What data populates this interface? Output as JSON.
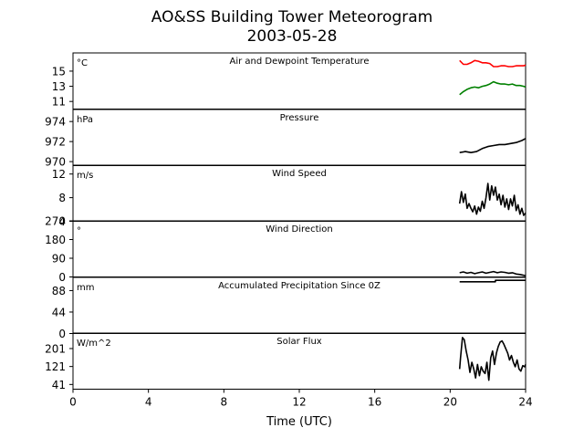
{
  "chart_data": {
    "type": "line",
    "title": "AO&SS Building Tower Meteorogram",
    "subtitle": "2003-05-28",
    "xlabel": "Time (UTC)",
    "xlim": [
      0,
      24
    ],
    "xticks": [
      0,
      4,
      8,
      12,
      16,
      20,
      24
    ],
    "panels": [
      {
        "id": "temperature",
        "title": "Air and Dewpoint Temperature",
        "unit": "°C",
        "ylim": [
          10,
          17.4
        ],
        "yticks": [
          11,
          13,
          15
        ],
        "series": [
          {
            "color": "#ff0000",
            "x": [
              20.5,
              20.7,
              20.9,
              21.1,
              21.3,
              21.5,
              21.7,
              21.9,
              22.1,
              22.3,
              22.5,
              22.7,
              22.9,
              23.1,
              23.3,
              23.5,
              23.7,
              23.9,
              24.0
            ],
            "y": [
              16.4,
              15.9,
              15.9,
              16.1,
              16.4,
              16.3,
              16.1,
              16.1,
              16.0,
              15.6,
              15.6,
              15.7,
              15.7,
              15.6,
              15.6,
              15.7,
              15.7,
              15.7,
              15.8
            ]
          },
          {
            "color": "#008000",
            "x": [
              20.5,
              20.7,
              20.9,
              21.1,
              21.3,
              21.5,
              21.7,
              21.9,
              22.1,
              22.3,
              22.5,
              22.7,
              22.9,
              23.1,
              23.3,
              23.5,
              23.7,
              23.9,
              24.0
            ],
            "y": [
              11.9,
              12.3,
              12.6,
              12.8,
              12.9,
              12.8,
              13.0,
              13.1,
              13.3,
              13.6,
              13.4,
              13.3,
              13.3,
              13.2,
              13.3,
              13.1,
              13.1,
              13.0,
              12.9
            ]
          }
        ]
      },
      {
        "id": "pressure",
        "title": "Pressure",
        "unit": "hPa",
        "ylim": [
          969.6,
          975.2
        ],
        "yticks": [
          970,
          972,
          974
        ],
        "series": [
          {
            "color": "#000000",
            "x": [
              20.5,
              20.8,
              21.1,
              21.4,
              21.7,
              22.0,
              22.3,
              22.6,
              22.9,
              23.2,
              23.5,
              23.8,
              24.0
            ],
            "y": [
              970.9,
              971.0,
              970.9,
              971.0,
              971.3,
              971.5,
              971.6,
              971.7,
              971.7,
              971.8,
              971.9,
              972.1,
              972.3
            ]
          }
        ]
      },
      {
        "id": "wind-speed",
        "title": "Wind Speed",
        "unit": "m/s",
        "ylim": [
          4,
          13.5
        ],
        "yticks": [
          4,
          8,
          12
        ],
        "series": [
          {
            "color": "#000000",
            "x": [
              20.5,
              20.6,
              20.7,
              20.8,
              20.9,
              21.0,
              21.1,
              21.2,
              21.3,
              21.4,
              21.5,
              21.6,
              21.7,
              21.8,
              21.9,
              22.0,
              22.1,
              22.2,
              22.3,
              22.4,
              22.5,
              22.6,
              22.7,
              22.8,
              22.9,
              23.0,
              23.1,
              23.2,
              23.3,
              23.4,
              23.5,
              23.6,
              23.7,
              23.8,
              23.9,
              24.0
            ],
            "y": [
              7.0,
              9.0,
              7.2,
              8.6,
              6.2,
              7.0,
              6.2,
              5.6,
              6.6,
              5.2,
              6.4,
              5.7,
              7.4,
              6.2,
              8.0,
              10.4,
              7.6,
              10.0,
              8.4,
              9.8,
              7.6,
              8.6,
              6.8,
              8.4,
              6.4,
              7.8,
              6.0,
              7.8,
              6.6,
              8.4,
              5.8,
              6.8,
              5.2,
              6.2,
              5.0,
              5.4
            ]
          }
        ]
      },
      {
        "id": "wind-direction",
        "title": "Wind Direction",
        "unit": "°",
        "ylim": [
          0,
          270
        ],
        "yticks": [
          0,
          90,
          180,
          270
        ],
        "series": [
          {
            "color": "#000000",
            "x": [
              20.5,
              20.7,
              20.9,
              21.1,
              21.3,
              21.5,
              21.7,
              21.9,
              22.1,
              22.3,
              22.5,
              22.7,
              22.9,
              23.1,
              23.3,
              23.5,
              23.7,
              23.9,
              24.0
            ],
            "y": [
              20,
              24,
              18,
              22,
              16,
              20,
              24,
              18,
              22,
              26,
              20,
              24,
              22,
              18,
              20,
              14,
              12,
              8,
              6
            ]
          }
        ]
      },
      {
        "id": "precipitation",
        "title": "Accumulated Precipitation Since 0Z",
        "unit": "mm",
        "ylim": [
          0,
          115
        ],
        "yticks": [
          0,
          44,
          88
        ],
        "series": [
          {
            "color": "#000000",
            "x": [
              20.5,
              22.4,
              22.4,
              24.0
            ],
            "y": [
              106,
              106,
              109,
              109
            ]
          }
        ]
      },
      {
        "id": "solar-flux",
        "title": "Solar Flux",
        "unit": "W/m^2",
        "ylim": [
          20,
          270
        ],
        "yticks": [
          41,
          121,
          201
        ],
        "series": [
          {
            "color": "#000000",
            "x": [
              20.5,
              20.55,
              20.65,
              20.75,
              20.85,
              20.95,
              21.05,
              21.15,
              21.25,
              21.35,
              21.45,
              21.55,
              21.65,
              21.75,
              21.85,
              21.95,
              22.05,
              22.15,
              22.25,
              22.35,
              22.45,
              22.55,
              22.65,
              22.75,
              22.85,
              22.95,
              23.05,
              23.15,
              23.25,
              23.35,
              23.45,
              23.55,
              23.65,
              23.75,
              23.85,
              23.95,
              24.0
            ],
            "y": [
              110,
              160,
              250,
              240,
              190,
              150,
              95,
              140,
              110,
              70,
              130,
              80,
              120,
              100,
              90,
              140,
              60,
              160,
              190,
              130,
              180,
              210,
              230,
              235,
              220,
              200,
              180,
              150,
              170,
              140,
              120,
              150,
              110,
              100,
              125,
              120,
              130
            ]
          }
        ]
      }
    ]
  }
}
